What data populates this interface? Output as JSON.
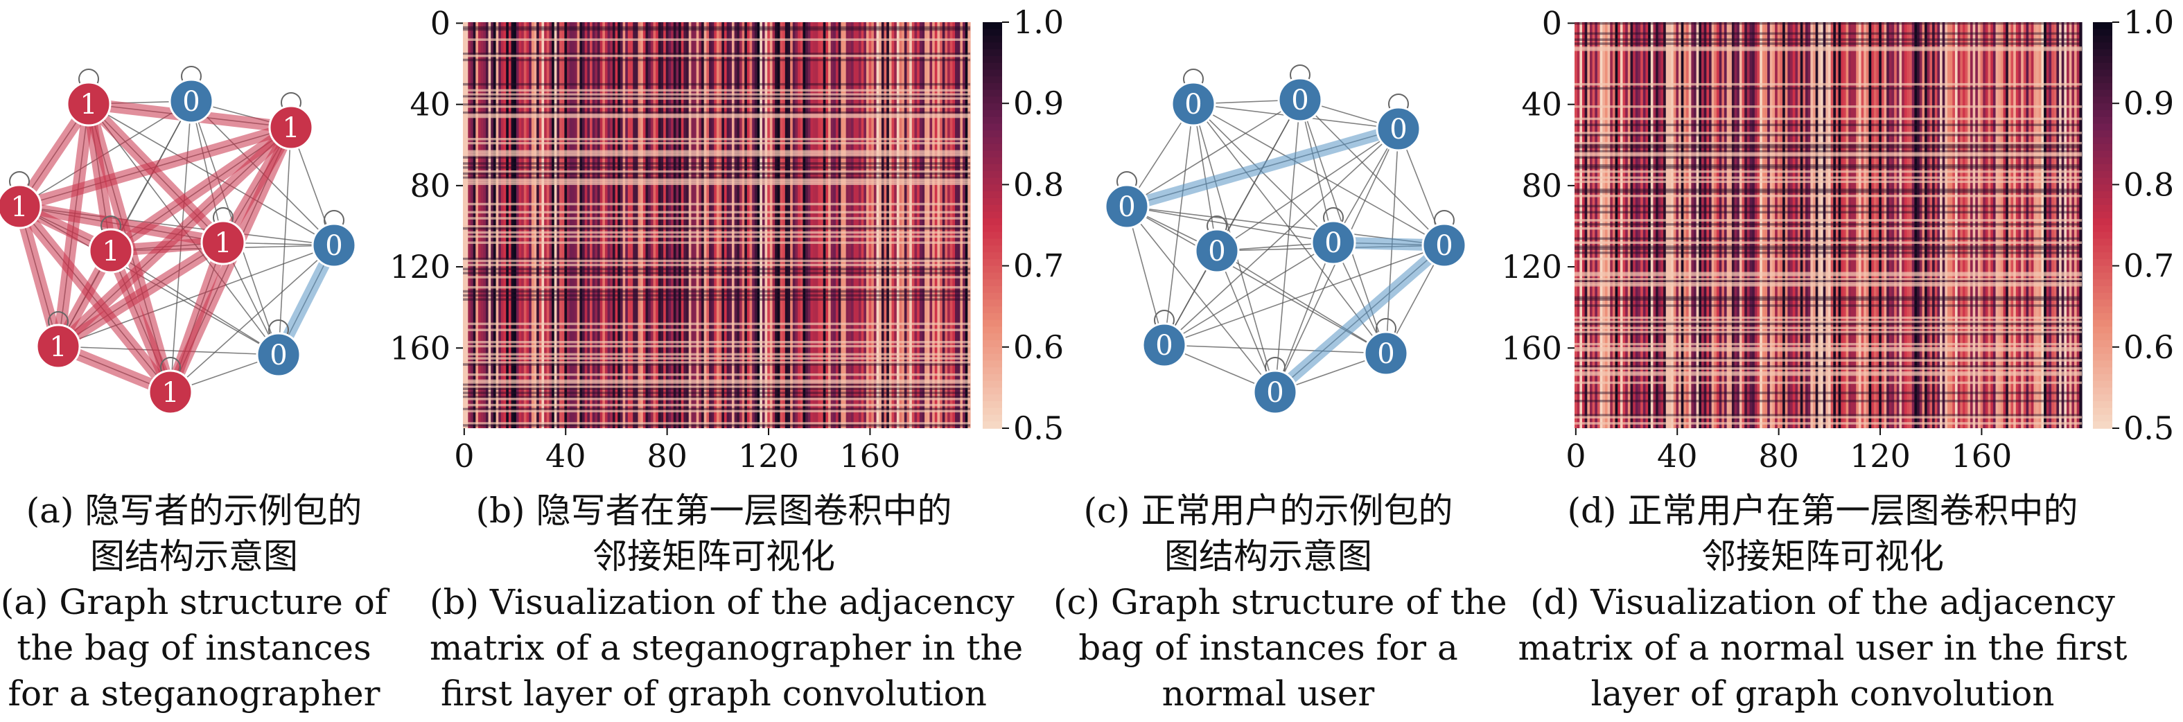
{
  "colors": {
    "steganographer_node": "#c8334a",
    "steganographer_edge": "#c8334a",
    "normal_node": "#3f78aa",
    "normal_edge": "#5a95c5",
    "thin_edge": "#555555"
  },
  "colorbar": {
    "ticks": [
      "1.0",
      "0.9",
      "0.8",
      "0.7",
      "0.6",
      "0.5"
    ],
    "range": [
      0.5,
      1.0
    ]
  },
  "chart_data": [
    {
      "type": "graph",
      "nodes": [
        {
          "label": "1"
        },
        {
          "label": "0"
        },
        {
          "label": "1"
        },
        {
          "label": "1"
        },
        {
          "label": "1"
        },
        {
          "label": "1"
        },
        {
          "label": "0"
        },
        {
          "label": "1"
        },
        {
          "label": "0"
        },
        {
          "label": "1"
        }
      ]
    },
    {
      "type": "heatmap",
      "x_ticks": [
        "0",
        "40",
        "80",
        "120",
        "160"
      ],
      "y_ticks": [
        "0",
        "40",
        "80",
        "120",
        "160"
      ],
      "size": 200,
      "value_range": [
        0.5,
        1.0
      ]
    },
    {
      "type": "graph",
      "nodes": [
        {
          "label": "0"
        },
        {
          "label": "0"
        },
        {
          "label": "0"
        },
        {
          "label": "0"
        },
        {
          "label": "0"
        },
        {
          "label": "0"
        },
        {
          "label": "0"
        },
        {
          "label": "0"
        },
        {
          "label": "0"
        },
        {
          "label": "0"
        }
      ]
    },
    {
      "type": "heatmap",
      "x_ticks": [
        "0",
        "40",
        "80",
        "120",
        "160"
      ],
      "y_ticks": [
        "0",
        "40",
        "80",
        "120",
        "160"
      ],
      "size": 200,
      "value_range": [
        0.5,
        1.0
      ]
    }
  ],
  "captions": [
    {
      "cn": [
        "(a) 隐写者的示例包的",
        "图结构示意图"
      ],
      "en": [
        "(a) Graph structure of",
        "the bag of instances",
        "for a steganographer"
      ]
    },
    {
      "cn": [
        "(b) 隐写者在第一层图卷积中的",
        "邻接矩阵可视化"
      ],
      "en": [
        "(b) Visualization of the adjacency",
        "matrix of a steganographer in the",
        "first layer of graph convolution"
      ]
    },
    {
      "cn": [
        "(c) 正常用户的示例包的",
        "图结构示意图"
      ],
      "en": [
        "(c) Graph structure of the",
        "bag of instances for a",
        "normal user"
      ]
    },
    {
      "cn": [
        "(d) 正常用户在第一层图卷积中的",
        "邻接矩阵可视化"
      ],
      "en": [
        "(d) Visualization of the adjacency",
        "matrix of a normal user in the first",
        "layer of graph convolution"
      ]
    }
  ]
}
